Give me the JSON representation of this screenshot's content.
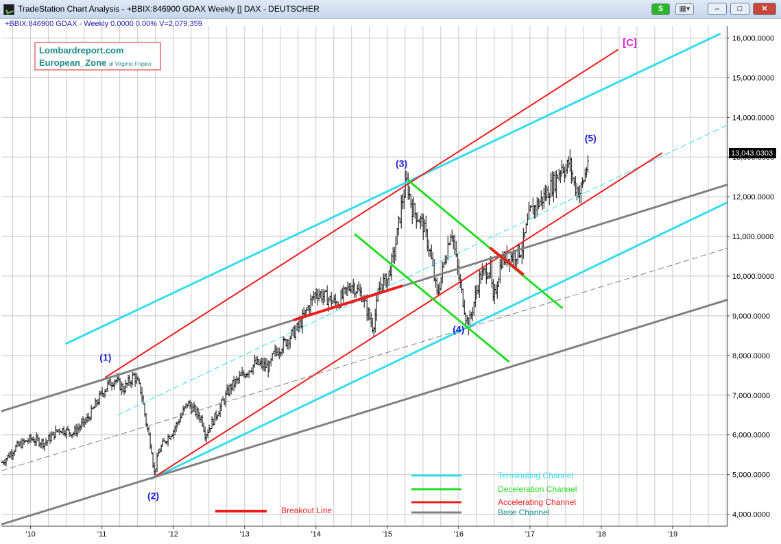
{
  "window": {
    "title": "TradeStation Chart Analysis - +BBIX:846900 GDAX Weekly [] DAX - DEUTSCHER",
    "s_button": "S",
    "grid_button": "▦▾",
    "minimize": "–",
    "maximize": "□",
    "close": "✕"
  },
  "symbol_info": "+BBIX:846900 GDAX - Weekly  0.0000  0.00%  V=2,079,359",
  "watermark": {
    "line1": "Lombardreport.com",
    "line2": "European_Zone",
    "line2_small": "di Virginio Frigieri"
  },
  "last_price_label": "13,043.0303",
  "colors": {
    "terminating": "#33ddee",
    "deceleration": "#22dd22",
    "accelerating": "#ee1c1c",
    "base": "#808080",
    "wave_label": "#1a1ad6",
    "c_label": "#e020e0",
    "grid": "#c8c8c8",
    "price_bars": "#000000"
  },
  "chart_data": {
    "type": "line",
    "ylim": [
      3700,
      16300
    ],
    "y_ticks": [
      4000,
      5000,
      6000,
      7000,
      8000,
      9000,
      10000,
      11000,
      12000,
      13000,
      14000,
      15000,
      16000
    ],
    "y_tick_labels": [
      "4,000.0000",
      "5,000.0000",
      "6,000.0000",
      "7,000.0000",
      "8,000.0000",
      "9,000.0000",
      "10,000.0000",
      "11,000.0000",
      "12,000.0000",
      "13,000.0000",
      "14,000.0000",
      "15,000.0000",
      "16,000.0000"
    ],
    "xlim": [
      2009.6,
      2019.76
    ],
    "x_ticks": [
      2010,
      2011,
      2012,
      2013,
      2014,
      2015,
      2016,
      2017,
      2018,
      2019
    ],
    "x_tick_labels": [
      "'10",
      "'11",
      "'12",
      "'13",
      "'14",
      "'15",
      "'16",
      "'17",
      "'18",
      "'19"
    ],
    "last_price": 13043.0303,
    "price_path": [
      [
        2009.6,
        5300
      ],
      [
        2009.8,
        5700
      ],
      [
        2010.0,
        5900
      ],
      [
        2010.2,
        5800
      ],
      [
        2010.4,
        6150
      ],
      [
        2010.6,
        6050
      ],
      [
        2010.8,
        6400
      ],
      [
        2011.0,
        7050
      ],
      [
        2011.08,
        7250
      ],
      [
        2011.18,
        7400
      ],
      [
        2011.3,
        7150
      ],
      [
        2011.45,
        7500
      ],
      [
        2011.55,
        7100
      ],
      [
        2011.62,
        6300
      ],
      [
        2011.7,
        5600
      ],
      [
        2011.73,
        5000
      ],
      [
        2011.8,
        5600
      ],
      [
        2011.9,
        5900
      ],
      [
        2012.0,
        6100
      ],
      [
        2012.2,
        6800
      ],
      [
        2012.4,
        6400
      ],
      [
        2012.45,
        6000
      ],
      [
        2012.6,
        6500
      ],
      [
        2012.8,
        7200
      ],
      [
        2013.0,
        7550
      ],
      [
        2013.15,
        7800
      ],
      [
        2013.35,
        7700
      ],
      [
        2013.4,
        8000
      ],
      [
        2013.55,
        8300
      ],
      [
        2013.75,
        8700
      ],
      [
        2014.0,
        9600
      ],
      [
        2014.3,
        9300
      ],
      [
        2014.5,
        9800
      ],
      [
        2014.65,
        9500
      ],
      [
        2014.8,
        8700
      ],
      [
        2014.9,
        9800
      ],
      [
        2015.0,
        9900
      ],
      [
        2015.1,
        10600
      ],
      [
        2015.2,
        11800
      ],
      [
        2015.27,
        12390
      ],
      [
        2015.35,
        11700
      ],
      [
        2015.5,
        11300
      ],
      [
        2015.6,
        10600
      ],
      [
        2015.7,
        9500
      ],
      [
        2015.85,
        10800
      ],
      [
        2015.9,
        11200
      ],
      [
        2016.0,
        10000
      ],
      [
        2016.1,
        9000
      ],
      [
        2016.14,
        8750
      ],
      [
        2016.3,
        10000
      ],
      [
        2016.45,
        10200
      ],
      [
        2016.48,
        9300
      ],
      [
        2016.6,
        10400
      ],
      [
        2016.75,
        10500
      ],
      [
        2016.88,
        10650
      ],
      [
        2017.0,
        11600
      ],
      [
        2017.2,
        12000
      ],
      [
        2017.35,
        12400
      ],
      [
        2017.45,
        12800
      ],
      [
        2017.5,
        12650
      ],
      [
        2017.55,
        12900
      ],
      [
        2017.62,
        12300
      ],
      [
        2017.7,
        12100
      ],
      [
        2017.78,
        12600
      ],
      [
        2017.82,
        13043
      ]
    ],
    "channels": [
      {
        "name": "Terminating Channel",
        "color": "terminating",
        "width": 3,
        "points": [
          [
            2010.5,
            8300
          ],
          [
            2019.66,
            16100
          ]
        ]
      },
      {
        "name": "Terminating Channel",
        "color": "terminating",
        "width": 3,
        "points": [
          [
            2011.7,
            4900
          ],
          [
            2019.76,
            11850
          ]
        ]
      },
      {
        "name": "Terminating Channel",
        "color": "terminating",
        "width": 1,
        "dashed": true,
        "points": [
          [
            2011.22,
            6500
          ],
          [
            2019.76,
            13800
          ]
        ]
      },
      {
        "name": "Accelerating Channel",
        "color": "accelerating",
        "width": 2,
        "points": [
          [
            2011.05,
            7450
          ],
          [
            2018.23,
            15700
          ]
        ]
      },
      {
        "name": "Accelerating Channel",
        "color": "accelerating",
        "width": 2,
        "points": [
          [
            2011.7,
            4900
          ],
          [
            2018.85,
            13100
          ]
        ]
      },
      {
        "name": "Base Channel",
        "color": "base",
        "width": 3,
        "points": [
          [
            2009.6,
            6600
          ],
          [
            2019.76,
            12300
          ]
        ]
      },
      {
        "name": "Base Channel",
        "color": "base",
        "width": 3,
        "points": [
          [
            2009.6,
            3750
          ],
          [
            2019.76,
            9400
          ]
        ]
      },
      {
        "name": "Base Channel",
        "color": "base",
        "width": 1,
        "dashed": true,
        "points": [
          [
            2009.6,
            5100
          ],
          [
            2019.76,
            10700
          ]
        ]
      },
      {
        "name": "Deceleration Channel",
        "color": "deceleration",
        "width": 3,
        "points": [
          [
            2015.3,
            12400
          ],
          [
            2017.45,
            9200
          ]
        ]
      },
      {
        "name": "Deceleration Channel",
        "color": "deceleration",
        "width": 3,
        "points": [
          [
            2014.55,
            11050
          ],
          [
            2016.7,
            7850
          ]
        ]
      },
      {
        "name": "Breakout Line",
        "color": "accelerating",
        "width": 4,
        "points": [
          [
            2013.7,
            8900
          ],
          [
            2015.2,
            9750
          ]
        ]
      },
      {
        "name": "Breakout Line",
        "color": "accelerating",
        "width": 4,
        "points": [
          [
            2016.45,
            10700
          ],
          [
            2016.9,
            10050
          ]
        ]
      }
    ],
    "wave_labels": [
      {
        "text": "(1)",
        "x": 2011.05,
        "y": 7870
      },
      {
        "text": "(2)",
        "x": 2011.72,
        "y": 4380
      },
      {
        "text": "(3)",
        "x": 2015.2,
        "y": 12750
      },
      {
        "text": "(4)",
        "x": 2016.0,
        "y": 8580
      },
      {
        "text": "(5)",
        "x": 2017.85,
        "y": 13390
      }
    ],
    "c_label": {
      "text": "[C]",
      "x": 2018.4,
      "y": 15800
    },
    "legend": {
      "placement": "bottom-center",
      "entries": [
        {
          "label": "Terminating Channel",
          "color": "terminating"
        },
        {
          "label": "Deceleration Channel",
          "color": "deceleration"
        },
        {
          "label": "Accelerating Channel",
          "color": "accelerating"
        },
        {
          "label": "Base Channel",
          "color": "base"
        }
      ],
      "breakout": {
        "label": "Breakout Line",
        "color": "accelerating"
      }
    }
  }
}
